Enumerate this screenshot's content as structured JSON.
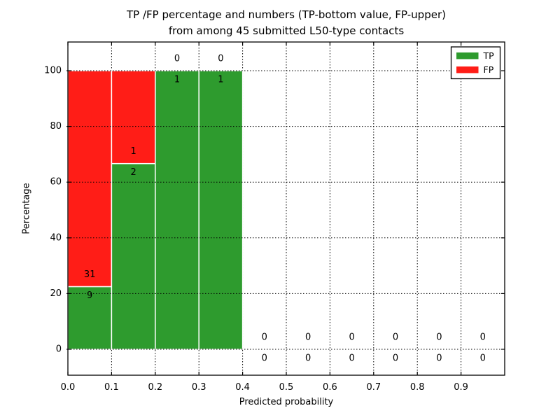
{
  "figure": {
    "title_line1": "TP /FP percentage and numbers (TP-bottom value, FP-upper)",
    "title_line2": "from among 45 submitted L50-type contacts",
    "xlabel": "Predicted probability",
    "ylabel": "Percentage"
  },
  "chart_data": {
    "type": "bar",
    "stacked": true,
    "title": "TP /FP percentage and numbers (TP-bottom value, FP-upper) from among 45 submitted L50-type contacts",
    "xlabel": "Predicted probability",
    "ylabel": "Percentage",
    "xlim": [
      0.0,
      1.0
    ],
    "ylim": [
      -9,
      110
    ],
    "grid": true,
    "grid_style": "dotted",
    "legend_position": "upper right",
    "bin_width": 0.1,
    "bin_starts": [
      0.0,
      0.1,
      0.2,
      0.3,
      0.4,
      0.5,
      0.6,
      0.7,
      0.8,
      0.9
    ],
    "series": [
      {
        "name": "TP",
        "color": "#2e9b2e",
        "counts": [
          9,
          2,
          1,
          1,
          0,
          0,
          0,
          0,
          0,
          0
        ],
        "percent": [
          22.5,
          66.67,
          100,
          100,
          0,
          0,
          0,
          0,
          0,
          0
        ]
      },
      {
        "name": "FP",
        "color": "#ff1d17",
        "counts": [
          31,
          1,
          0,
          0,
          0,
          0,
          0,
          0,
          0,
          0
        ],
        "percent": [
          77.5,
          33.33,
          0,
          0,
          0,
          0,
          0,
          0,
          0,
          0
        ]
      }
    ],
    "total_contacts": 45,
    "xtick_labels": [
      "0.0",
      "0.1",
      "0.2",
      "0.3",
      "0.4",
      "0.5",
      "0.6",
      "0.7",
      "0.8",
      "0.9"
    ],
    "ytick_values": [
      0,
      20,
      40,
      60,
      80,
      100
    ],
    "bar_edge_color": "#ffffff",
    "text_color": "#000000"
  }
}
